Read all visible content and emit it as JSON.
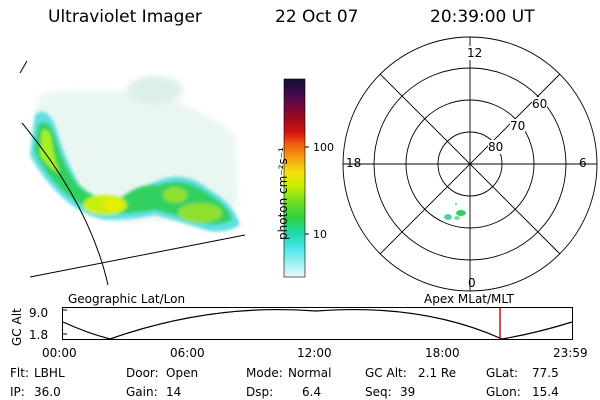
{
  "header": {
    "instrument": "Ultraviolet Imager",
    "date": "22 Oct 07",
    "time": "20:39:00 UT"
  },
  "colorbar": {
    "unit_label": "photon cm⁻²s⁻¹",
    "ticks": [
      "100",
      "10"
    ],
    "colors": [
      "#101030",
      "#3a0a4a",
      "#6a0a40",
      "#a00a20",
      "#d41410",
      "#f06010",
      "#f4a010",
      "#f4e010",
      "#c8f000",
      "#70e020",
      "#30d040",
      "#20d8b0",
      "#50e8e8",
      "#a0f0f0",
      "#e8f8f8"
    ]
  },
  "polar_plot": {
    "mlt_labels": {
      "top": "12",
      "bottom": "0",
      "left": "18",
      "right": "6"
    },
    "lat_labels": [
      "60",
      "70",
      "80"
    ]
  },
  "panel_labels": {
    "geographic": "Geographic Lat/Lon",
    "apex": "Apex MLat/MLT"
  },
  "altitude_plot": {
    "axis_label": "GC Alt",
    "y_ticks": [
      "9.0",
      "1.8"
    ],
    "x_ticks": [
      "00:00",
      "06:00",
      "12:00",
      "18:00",
      "23:59"
    ],
    "marker_color": "#cc0000"
  },
  "info": {
    "flt_label": "Flt:",
    "flt_value": "LBHL",
    "ip_label": "IP:",
    "ip_value": "36.0",
    "door_label": "Door:",
    "door_value": "Open",
    "gain_label": "Gain:",
    "gain_value": "14",
    "mode_label": "Mode:",
    "mode_value": "Normal",
    "dsp_label": "Dsp:",
    "dsp_value": "6.4",
    "gcalt_label": "GC Alt:",
    "gcalt_value": "2.1 Re",
    "seq_label": "Seq:",
    "seq_value": "39",
    "glat_label": "GLat:",
    "glat_value": "77.5",
    "glon_label": "GLon:",
    "glon_value": "15.4"
  }
}
